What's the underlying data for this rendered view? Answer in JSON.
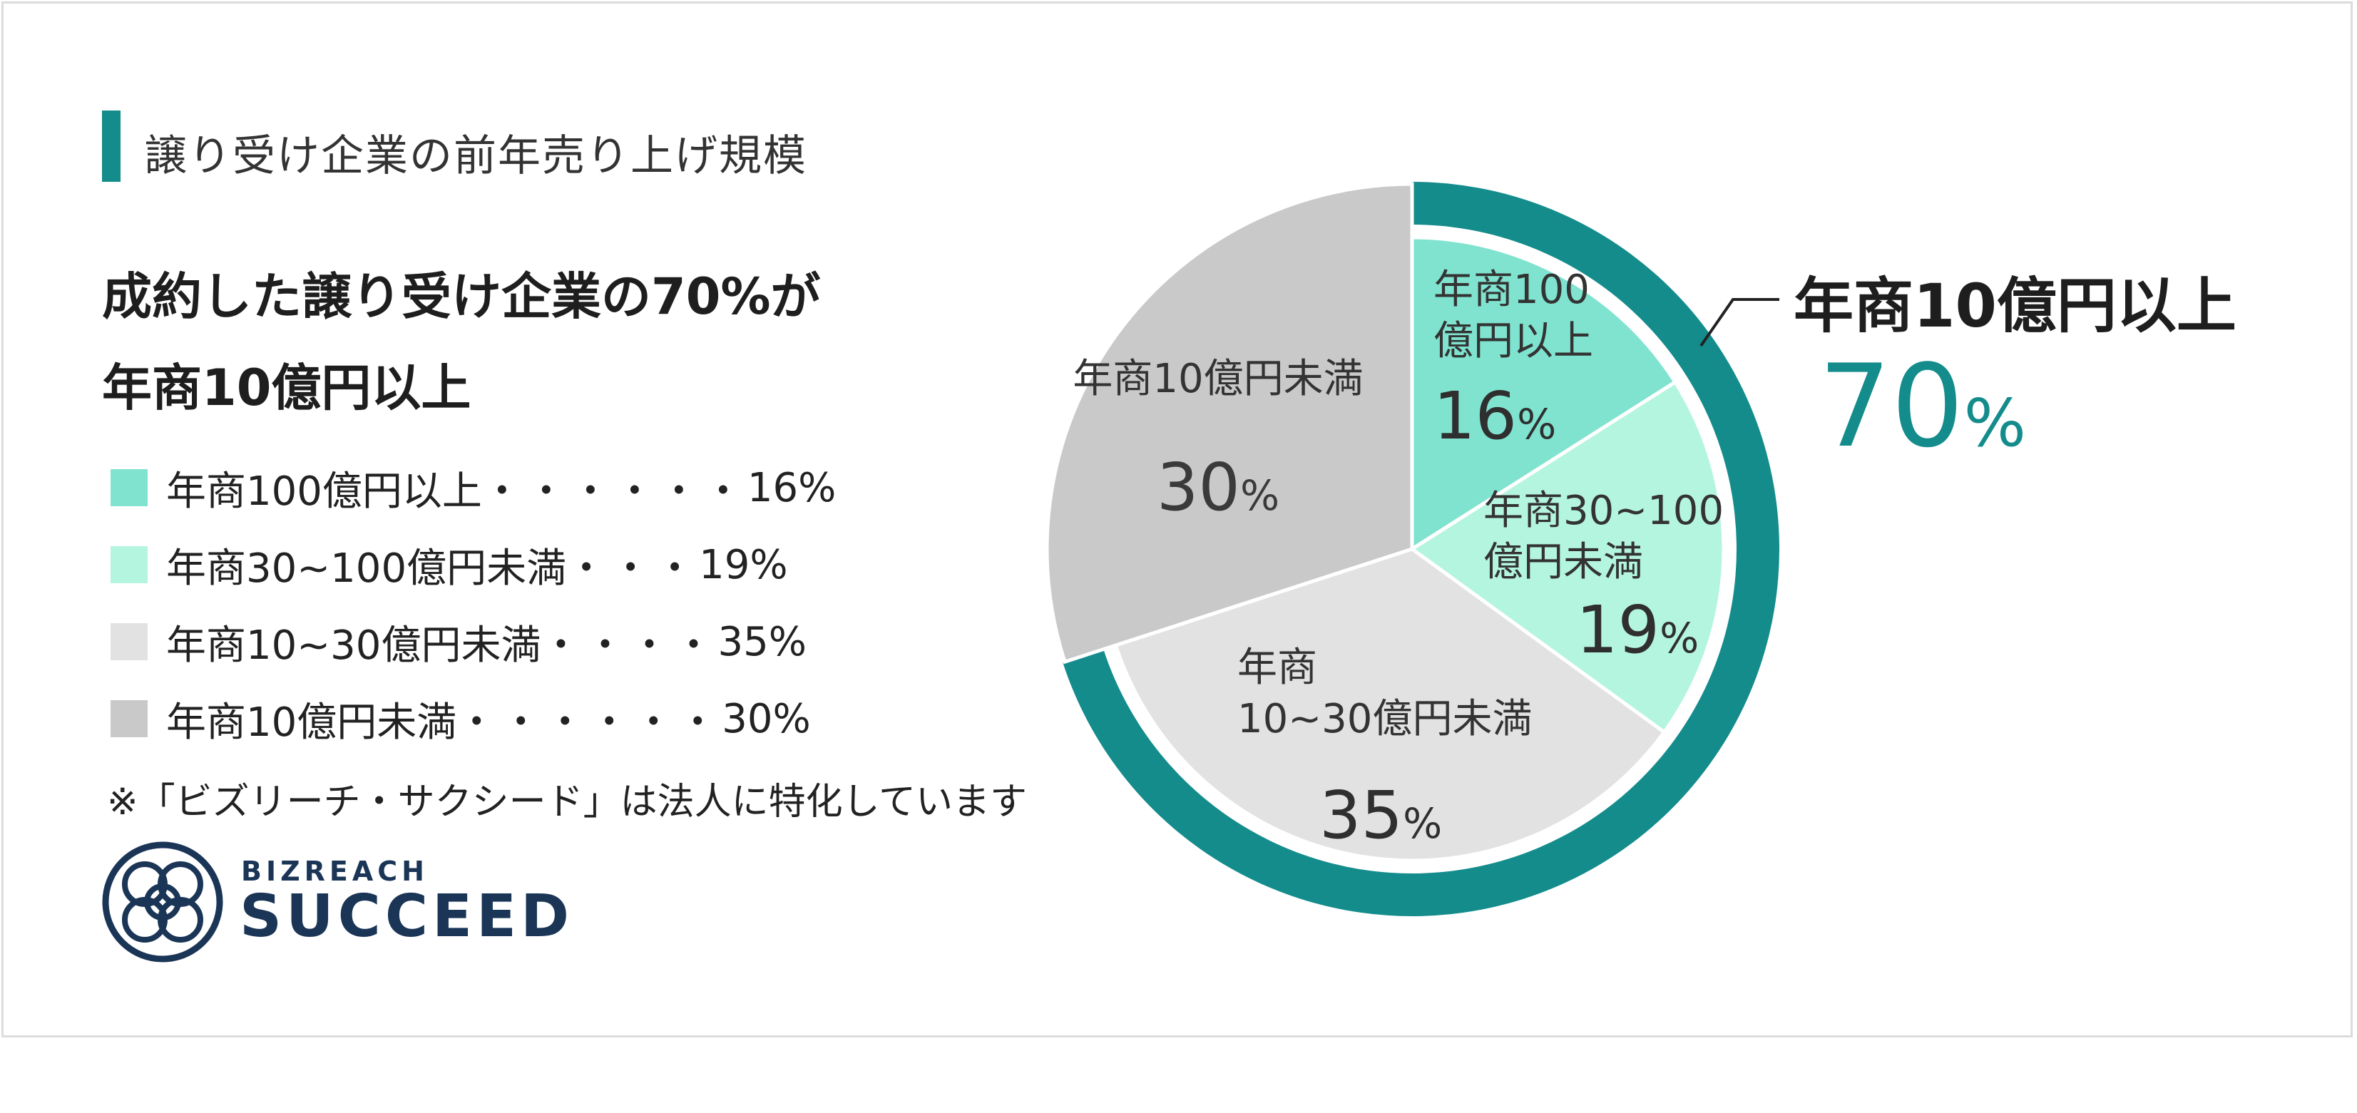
{
  "section_title": "譲り受け企業の前年売り上げ規模",
  "headline": [
    "成約した譲り受け企業の70%が",
    "年商10億円以上"
  ],
  "legend": [
    {
      "label": "年商100億円以上",
      "dots": "・・・・・・",
      "value": "16%",
      "color": "#7fe3cf"
    },
    {
      "label": "年商30~100億円未満",
      "dots": "・・・",
      "value": "19%",
      "color": "#b4f5e0"
    },
    {
      "label": "年商10~30億円未満",
      "dots": "・・・・",
      "value": "35%",
      "color": "#e2e2e2"
    },
    {
      "label": "年商10億円未満",
      "dots": "・・・・・・",
      "value": "30%",
      "color": "#c9c9c9"
    }
  ],
  "note": "※「ビズリーチ・サクシード」は法人に特化しています",
  "logo": {
    "small": "BIZREACH",
    "big": "SUCCEED",
    "color": "#1b3557",
    "icon": "interlocking-knot-icon"
  },
  "accent_color": "#148c8c",
  "callout": {
    "label": "年商10億円以上",
    "value": "70",
    "unit": "%",
    "color": "#148c8c"
  },
  "chart_data": {
    "type": "pie",
    "categories": [
      "年商100億円以上",
      "年商30~100億円未満",
      "年商10~30億円未満",
      "年商10億円未満"
    ],
    "values": [
      16,
      19,
      35,
      30
    ],
    "slice_labels": [
      {
        "lines": [
          "年商100",
          "億円以上"
        ],
        "value": "16",
        "unit": "%"
      },
      {
        "lines": [
          "年商30~100",
          "億円未満"
        ],
        "value": "19",
        "unit": "%"
      },
      {
        "lines": [
          "年商",
          "10~30億円未満"
        ],
        "value": "35",
        "unit": "%"
      },
      {
        "lines": [
          "年商10億円未満"
        ],
        "value": "30",
        "unit": "%"
      }
    ],
    "colors": [
      "#7fe3cf",
      "#b4f5e0",
      "#e2e2e2",
      "#c9c9c9"
    ],
    "highlight": {
      "label": "年商10億円以上",
      "value": 70,
      "color": "#148c8c"
    },
    "start": "12 o'clock, clockwise"
  }
}
